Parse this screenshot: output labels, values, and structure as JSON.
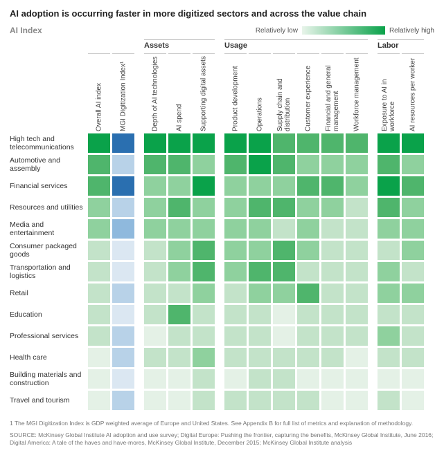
{
  "title": "AI adoption is occurring faster in more digitized sectors and across the value chain",
  "subtitle": "AI Index",
  "legend": {
    "low_label": "Relatively low",
    "high_label": "Relatively high",
    "gradient_from": "#e8f4ea",
    "gradient_to": "#0aa24a"
  },
  "groups": [
    {
      "label": "",
      "span": 2
    },
    {
      "label": "Assets",
      "span": 3
    },
    {
      "label": "Usage",
      "span": 6
    },
    {
      "label": "Labor",
      "span": 2
    }
  ],
  "columns": [
    "Overall AI index",
    "MGI Digitization Index¹",
    "Depth of AI technologies",
    "AI spend",
    "Supporting digital assets",
    "Product development",
    "Operations",
    "Supply chain and distribution",
    "Customer experience",
    "Financial and general management",
    "Workforce management",
    "Exposure to AI in workforce",
    "AI resources per worker"
  ],
  "rows": [
    "High tech and telecommunications",
    "Automotive and assembly",
    "Financial services",
    "Resources and utilities",
    "Media and entertainment",
    "Consumer packaged goods",
    "Transportation and logistics",
    "Retail",
    "Education",
    "Professional services",
    "Health care",
    "Building materials and construction",
    "Travel and tourism"
  ],
  "matrix": [
    [
      5,
      6,
      5,
      5,
      5,
      5,
      5,
      4,
      4,
      4,
      4,
      5,
      5
    ],
    [
      4,
      2,
      4,
      4,
      3,
      4,
      5,
      4,
      3,
      3,
      3,
      4,
      3
    ],
    [
      4,
      6,
      3,
      3,
      5,
      3,
      3,
      3,
      4,
      4,
      3,
      5,
      4
    ],
    [
      3,
      2,
      3,
      4,
      3,
      3,
      4,
      4,
      3,
      3,
      2,
      4,
      3
    ],
    [
      3,
      3,
      3,
      3,
      3,
      3,
      3,
      2,
      3,
      2,
      2,
      3,
      3
    ],
    [
      2,
      1,
      2,
      3,
      4,
      3,
      3,
      4,
      3,
      2,
      2,
      2,
      3
    ],
    [
      2,
      1,
      2,
      3,
      4,
      3,
      4,
      4,
      2,
      2,
      2,
      3,
      2
    ],
    [
      2,
      2,
      2,
      2,
      3,
      2,
      3,
      3,
      4,
      2,
      2,
      3,
      3
    ],
    [
      2,
      1,
      2,
      4,
      2,
      2,
      2,
      1,
      2,
      2,
      2,
      2,
      2
    ],
    [
      2,
      2,
      1,
      2,
      2,
      2,
      2,
      1,
      2,
      2,
      2,
      3,
      2
    ],
    [
      1,
      2,
      2,
      2,
      3,
      2,
      2,
      2,
      2,
      2,
      1,
      2,
      2
    ],
    [
      1,
      1,
      1,
      1,
      2,
      1,
      2,
      2,
      1,
      1,
      1,
      1,
      1
    ],
    [
      1,
      2,
      1,
      1,
      2,
      2,
      2,
      2,
      2,
      1,
      1,
      2,
      1
    ]
  ],
  "scale_green": {
    "1": "#e4f1e6",
    "2": "#c3e3c9",
    "3": "#8fd19e",
    "4": "#4fb56c",
    "5": "#0aa24a"
  },
  "scale_blue": {
    "1": "#dbe7f2",
    "2": "#b8d2e8",
    "3": "#8fb9dd",
    "4": "#6fa4d2",
    "5": "#4a8cc5",
    "6": "#2a6fb0"
  },
  "cell_size": {
    "w": 32,
    "h": 28
  },
  "footnote": "1  The MGI Digitization Index is GDP weighted average of Europe and United States. See Appendix B for full list of metrics and explanation of methodology.",
  "source": "SOURCE: McKinsey Global Institute AI adoption and use survey; Digital Europe: Pushing the frontier, capturing the benefits, McKinsey Global Institute, June 2016; Digital America: A tale of the haves and have-mores, McKinsey Global Institute, December 2015; McKinsey Global Institute analysis"
}
